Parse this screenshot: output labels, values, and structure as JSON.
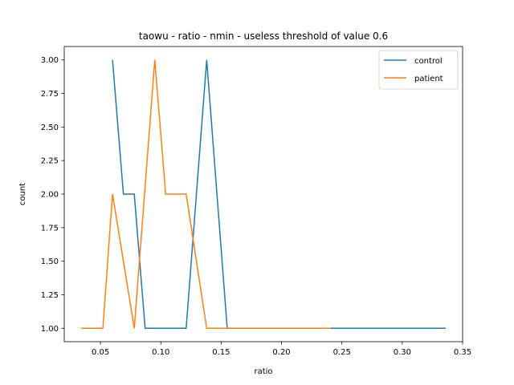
{
  "chart_data": {
    "type": "line",
    "title": "taowu - ratio - nmin - useless threshold of value 0.6",
    "xlabel": "ratio",
    "ylabel": "count",
    "xlim": [
      0.02,
      0.35
    ],
    "ylim": [
      0.9,
      3.1
    ],
    "xticks": [
      0.05,
      0.1,
      0.15,
      0.2,
      0.25,
      0.3,
      0.35
    ],
    "xtick_labels": [
      "0.05",
      "0.10",
      "0.15",
      "0.20",
      "0.25",
      "0.30",
      "0.35"
    ],
    "yticks": [
      1.0,
      1.25,
      1.5,
      1.75,
      2.0,
      2.25,
      2.5,
      2.75,
      3.0
    ],
    "ytick_labels": [
      "1.00",
      "1.25",
      "1.50",
      "1.75",
      "2.00",
      "2.25",
      "2.50",
      "2.75",
      "3.00"
    ],
    "grid": false,
    "legend_position": "top-right",
    "series": [
      {
        "name": "control",
        "color": "#1f77b4",
        "x": [
          0.06,
          0.069,
          0.078,
          0.087,
          0.095,
          0.104,
          0.121,
          0.138,
          0.155,
          0.19,
          0.24,
          0.336
        ],
        "y": [
          3,
          2,
          2,
          1,
          1,
          1,
          1,
          3,
          1,
          1,
          1,
          1
        ]
      },
      {
        "name": "patient",
        "color": "#ff7f0e",
        "x": [
          0.034,
          0.052,
          0.06,
          0.078,
          0.095,
          0.104,
          0.121,
          0.138,
          0.155,
          0.19,
          0.241
        ],
        "y": [
          1,
          1,
          2,
          1,
          3,
          2,
          2,
          1,
          1,
          1,
          1
        ]
      }
    ]
  }
}
